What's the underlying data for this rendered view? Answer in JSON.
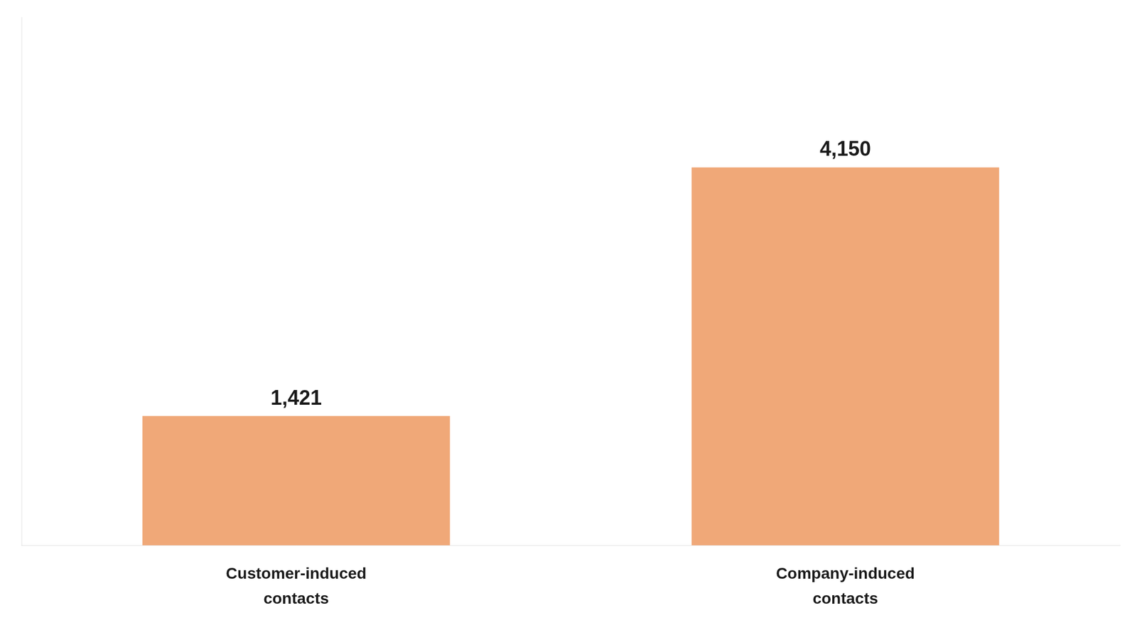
{
  "chart_data": {
    "type": "bar",
    "categories": [
      "Customer-induced\ncontacts",
      "Company-induced\ncontacts"
    ],
    "values": [
      1421,
      4150
    ],
    "value_labels": [
      "1,421",
      "4,150"
    ],
    "color": "#F0A878",
    "ylim": [
      0,
      5800
    ],
    "data_labels": true,
    "tick_labels": "x",
    "grid": false
  }
}
